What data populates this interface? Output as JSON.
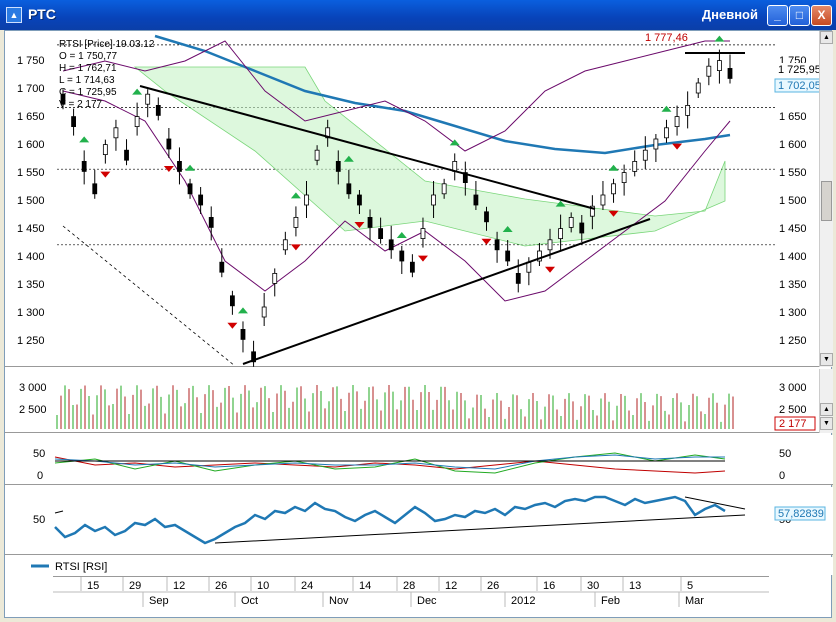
{
  "window": {
    "title": "РТС",
    "period": "Дневной",
    "icon": "chart-app-icon",
    "controls": {
      "minimize": "_",
      "maximize": "□",
      "close": "X"
    }
  },
  "colors": {
    "title_bar": "#0843b9",
    "up_arrow": "#22b14c",
    "down_arrow": "#d00000",
    "rsi_line": "#1f78b4",
    "trend_line": "#000000",
    "volume_bar": "#b22222",
    "ichimoku": "#22bb22"
  },
  "price_pane": {
    "info_lines": [
      "RTSI [Price] 19.03.12",
      "O = 1 750,77",
      "H = 1 762,71",
      "L = 1 714,63",
      "C = 1 725,95",
      "V = 2 177"
    ],
    "top_label": "1 777,46",
    "y_ticks_left": [
      "1 750",
      "1 700",
      "1 650",
      "1 600",
      "1 550",
      "1 500",
      "1 450",
      "1 400",
      "1 350",
      "1 300",
      "1 250"
    ],
    "y_ticks_right": [
      "1 750",
      "1 650",
      "1 600",
      "1 550",
      "1 500",
      "1 450",
      "1 400",
      "1 350",
      "1 300",
      "1 250"
    ],
    "current_label": "1 725,95",
    "ma_label": "1 702,05"
  },
  "volume_pane": {
    "y_ticks_left": [
      "3 000",
      "2 500"
    ],
    "y_ticks_right": [
      "3 000",
      "2 500"
    ],
    "current_label": "2 177"
  },
  "stoch_pane": {
    "y_ticks_left": [
      "50",
      "0"
    ],
    "y_ticks_right": [
      "50",
      "0"
    ]
  },
  "rsi_pane": {
    "y_tick_left": "50",
    "y_tick_right": "50",
    "current_label": "57,82839"
  },
  "legend": {
    "series_label": "RTSI [RSI]",
    "icon": "line-legend-icon"
  },
  "time_axis": {
    "days": [
      "15",
      "29",
      "12",
      "26",
      "10",
      "24",
      "14",
      "28",
      "12",
      "26",
      "16",
      "30",
      "13",
      "5"
    ],
    "months": [
      "Sep",
      "Oct",
      "Nov",
      "Dec",
      "2012",
      "Feb",
      "Mar"
    ]
  },
  "chart_data": {
    "type": "line",
    "title": "RTSI [Price] 19.03.12",
    "ylim": [
      1200,
      1780
    ],
    "last": {
      "open": 1750.77,
      "high": 1762.71,
      "low": 1714.63,
      "close": 1725.95,
      "volume": 2177
    },
    "series": [
      {
        "values": [
          1680,
          1640,
          1560,
          1520,
          1590,
          1620,
          1580,
          1640,
          1680,
          1660,
          1600,
          1560,
          1520,
          1500,
          1460,
          1380,
          1320,
          1260,
          1220,
          1300,
          1360,
          1420,
          1460,
          1500,
          1580,
          1620,
          1560,
          1520,
          1500,
          1460,
          1440,
          1420,
          1400,
          1380,
          1440,
          1500,
          1520,
          1560,
          1540,
          1500,
          1470,
          1420,
          1400,
          1360,
          1380,
          1400,
          1420,
          1440,
          1460,
          1450,
          1480,
          1500,
          1520,
          1540,
          1560,
          1580,
          1600,
          1620,
          1640,
          1660,
          1700,
          1730,
          1740,
          1726
        ]
      }
    ]
  }
}
